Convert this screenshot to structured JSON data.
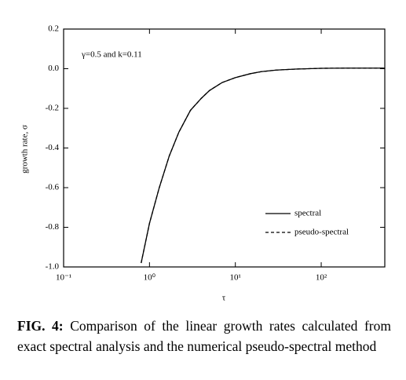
{
  "chart_data": {
    "type": "line",
    "annotation": "γ=0.5 and k=0.11",
    "x_label": "τ",
    "y_label": "growth rate, σ",
    "x_log": true,
    "x": [
      0.8,
      1,
      1.3,
      1.7,
      2.2,
      3,
      4,
      5,
      7,
      10,
      15,
      20,
      30,
      50,
      100,
      200,
      550
    ],
    "series": [
      {
        "name": "spectral",
        "color": "#000000",
        "dash": "none",
        "values": [
          -0.98,
          -0.78,
          -0.6,
          -0.44,
          -0.32,
          -0.21,
          -0.15,
          -0.11,
          -0.07,
          -0.045,
          -0.025,
          -0.015,
          -0.007,
          -0.002,
          0.002,
          0.003,
          0.003
        ]
      },
      {
        "name": "pseudo-spectral",
        "color": "#000000",
        "dash": "4 3",
        "values": [
          -0.98,
          -0.78,
          -0.6,
          -0.44,
          -0.32,
          -0.21,
          -0.15,
          -0.11,
          -0.07,
          -0.045,
          -0.025,
          -0.015,
          -0.007,
          -0.002,
          0.002,
          0.003,
          0.003
        ]
      }
    ],
    "xlim": [
      0.1,
      550
    ],
    "xticks": [
      {
        "value": 0.1,
        "label": "10⁻¹"
      },
      {
        "value": 1,
        "label": "10⁰"
      },
      {
        "value": 10,
        "label": "10¹"
      },
      {
        "value": 100,
        "label": "10²"
      }
    ],
    "ylim": [
      -1.0,
      0.2
    ],
    "yticks": [
      {
        "value": -1.0,
        "label": "-1.0"
      },
      {
        "value": -0.8,
        "label": "-0.8"
      },
      {
        "value": -0.6,
        "label": "-0.6"
      },
      {
        "value": -0.4,
        "label": "-0.4"
      },
      {
        "value": -0.2,
        "label": "-0.2"
      },
      {
        "value": 0,
        "label": "0.0"
      },
      0.2
    ],
    "legend": "lower right"
  },
  "caption": {
    "label": "FIG. 4:",
    "text": "Comparison of the linear growth rates calculated from exact spectral analysis and the numerical pseudo-spectral method"
  }
}
